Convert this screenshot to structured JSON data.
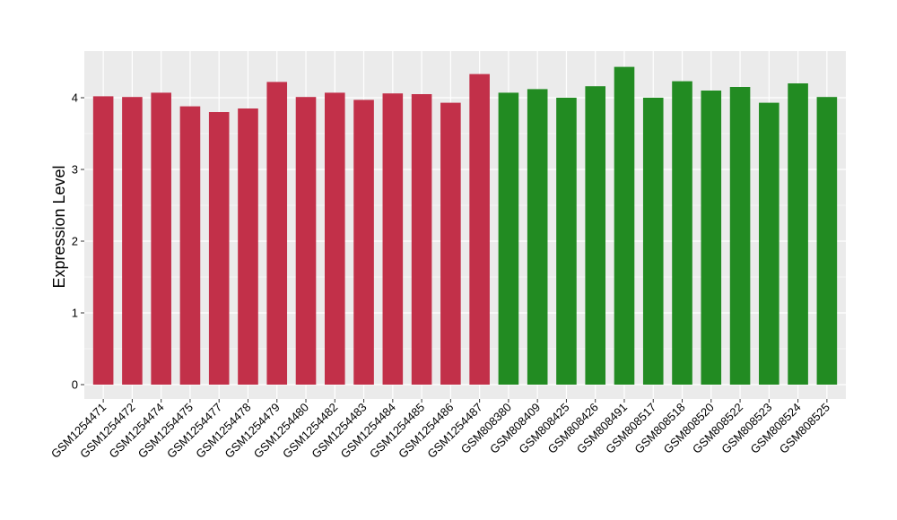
{
  "chart_data": {
    "type": "bar",
    "title": "",
    "xlabel": "",
    "ylabel": "Expression Level",
    "ylim": [
      0,
      4.65
    ],
    "yticks": [
      0,
      1,
      2,
      3,
      4
    ],
    "grid": true,
    "legend": "none",
    "colors": {
      "group1": "#c23049",
      "group2": "#228b22",
      "panel_background": "#ebebeb",
      "grid": "#ffffff"
    },
    "categories": [
      "GSM1254471",
      "GSM1254472",
      "GSM1254474",
      "GSM1254475",
      "GSM1254477",
      "GSM1254478",
      "GSM1254479",
      "GSM1254480",
      "GSM1254482",
      "GSM1254483",
      "GSM1254484",
      "GSM1254485",
      "GSM1254486",
      "GSM1254487",
      "GSM808380",
      "GSM808409",
      "GSM808425",
      "GSM808426",
      "GSM808491",
      "GSM808517",
      "GSM808518",
      "GSM808520",
      "GSM808522",
      "GSM808523",
      "GSM808524",
      "GSM808525"
    ],
    "values": [
      4.02,
      4.01,
      4.07,
      3.88,
      3.8,
      3.85,
      4.22,
      4.01,
      4.07,
      3.97,
      4.06,
      4.05,
      3.93,
      4.33,
      4.07,
      4.12,
      4.0,
      4.16,
      4.43,
      4.0,
      4.23,
      4.1,
      4.15,
      3.93,
      4.2,
      4.01
    ],
    "groups": [
      "group1",
      "group1",
      "group1",
      "group1",
      "group1",
      "group1",
      "group1",
      "group1",
      "group1",
      "group1",
      "group1",
      "group1",
      "group1",
      "group1",
      "group2",
      "group2",
      "group2",
      "group2",
      "group2",
      "group2",
      "group2",
      "group2",
      "group2",
      "group2",
      "group2",
      "group2"
    ]
  }
}
